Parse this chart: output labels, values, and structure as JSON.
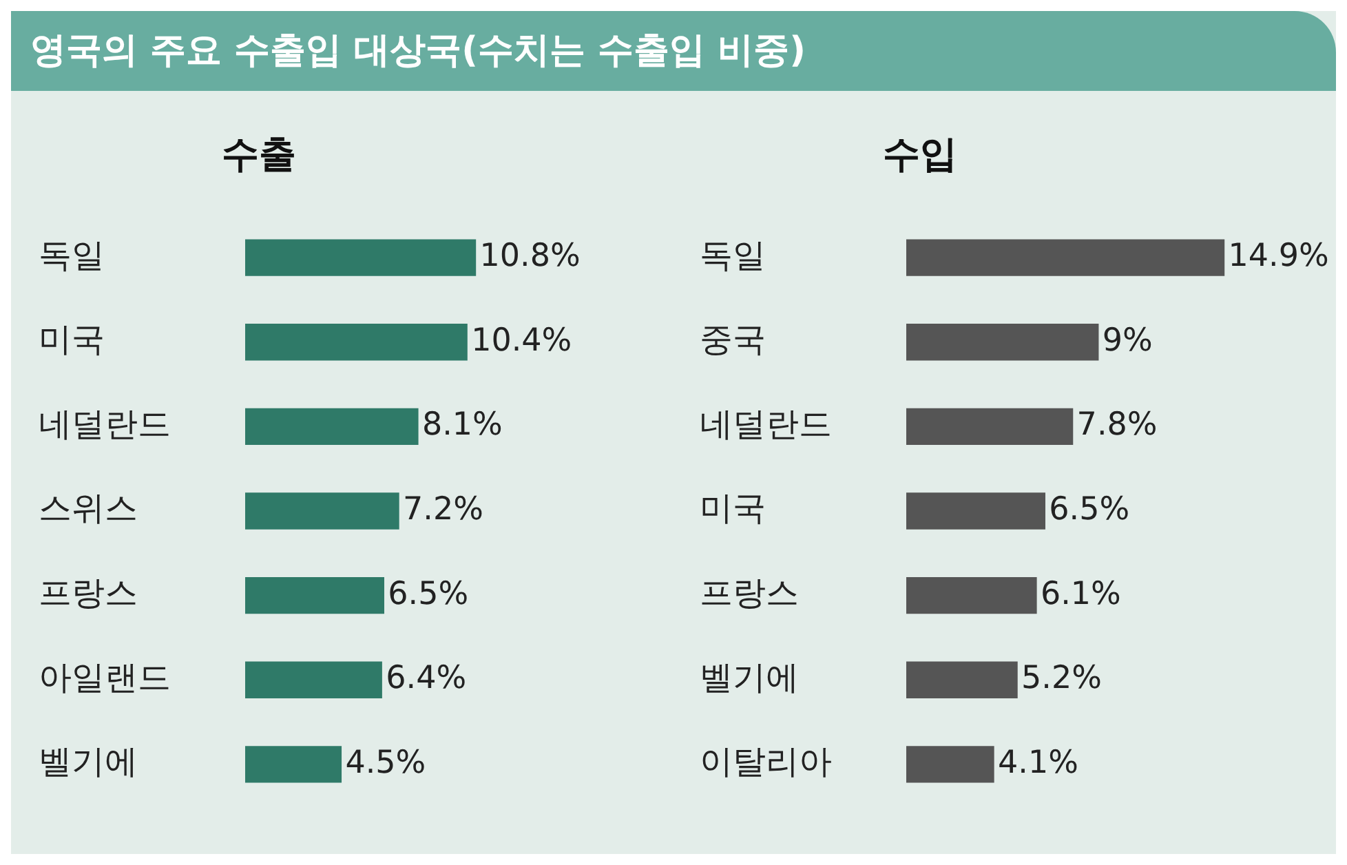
{
  "chart_data": [
    {
      "type": "bar",
      "orientation": "horizontal",
      "title": "영국의 주요 수출입 대상국(수치는 수출입 비중)",
      "subtitle": "수출",
      "categories": [
        "독일",
        "미국",
        "네덜란드",
        "스위스",
        "프랑스",
        "아일랜드",
        "벨기에"
      ],
      "values": [
        10.8,
        10.4,
        8.1,
        7.2,
        6.5,
        6.4,
        4.5
      ],
      "value_labels": [
        "10.8%",
        "10.4%",
        "8.1%",
        "7.2%",
        "6.5%",
        "6.4%",
        "4.5%"
      ],
      "color": "#2f7a68",
      "tick_labels": "y",
      "legend": false
    },
    {
      "type": "bar",
      "orientation": "horizontal",
      "subtitle": "수입",
      "categories": [
        "독일",
        "중국",
        "네덜란드",
        "미국",
        "프랑스",
        "벨기에",
        "이탈리아"
      ],
      "values": [
        14.9,
        9,
        7.8,
        6.5,
        6.1,
        5.2,
        4.1
      ],
      "value_labels": [
        "14.9%",
        "9%",
        "7.8%",
        "6.5%",
        "6.1%",
        "5.2%",
        "4.1%"
      ],
      "color": "#555555",
      "tick_labels": "y",
      "legend": false
    }
  ]
}
